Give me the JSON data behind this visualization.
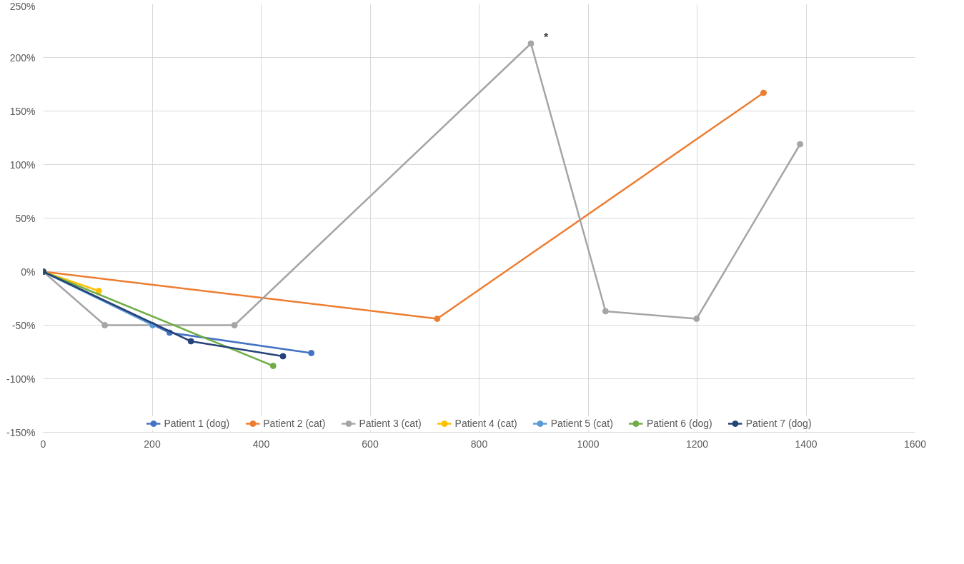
{
  "chart_data": {
    "type": "line",
    "xlim": [
      0,
      1600
    ],
    "xticks": [
      0,
      200,
      400,
      600,
      800,
      1000,
      1200,
      1400,
      1600
    ],
    "ylim": [
      -150,
      250
    ],
    "yticks": [
      {
        "value": -150,
        "label": "-150%"
      },
      {
        "value": -100,
        "label": "-100%"
      },
      {
        "value": -50,
        "label": "-50%"
      },
      {
        "value": 0,
        "label": "0%"
      },
      {
        "value": 50,
        "label": "50%"
      },
      {
        "value": 100,
        "label": "100%"
      },
      {
        "value": 150,
        "label": "150%"
      },
      {
        "value": 200,
        "label": "200%"
      },
      {
        "value": 250,
        "label": "250%"
      }
    ],
    "grid": true,
    "legend": "bottom",
    "marker": "circle",
    "line_style": "solid",
    "series": [
      {
        "name": "Patient 1 (dog)",
        "color": "#4472c4",
        "x": [
          0,
          232,
          492
        ],
        "values": [
          0,
          -57,
          -76
        ]
      },
      {
        "name": "Patient 2 (cat)",
        "color": "#ed7d31",
        "x": [
          0,
          723,
          1322
        ],
        "values": [
          0,
          -44,
          167
        ]
      },
      {
        "name": "Patient 3 (cat)",
        "color": "#a5a5a5",
        "x": [
          0,
          113,
          351,
          895,
          1032,
          1199,
          1389
        ],
        "values": [
          0,
          -50,
          -50,
          213,
          -37,
          -44,
          119
        ]
      },
      {
        "name": "Patient 4 (cat)",
        "color": "#ffc000",
        "x": [
          0,
          102
        ],
        "values": [
          0,
          -18
        ]
      },
      {
        "name": "Patient 5 (cat)",
        "color": "#5b9bd5",
        "x": [
          0,
          201
        ],
        "values": [
          0,
          -50
        ]
      },
      {
        "name": "Patient 6 (dog)",
        "color": "#70ad47",
        "x": [
          0,
          422
        ],
        "values": [
          0,
          -88
        ]
      },
      {
        "name": "Patient 7 (dog)",
        "color": "#264478",
        "x": [
          0,
          271,
          440
        ],
        "values": [
          0,
          -65,
          -79
        ]
      }
    ],
    "annotations": [
      {
        "text": "*",
        "x": 895,
        "y": 213
      }
    ]
  }
}
